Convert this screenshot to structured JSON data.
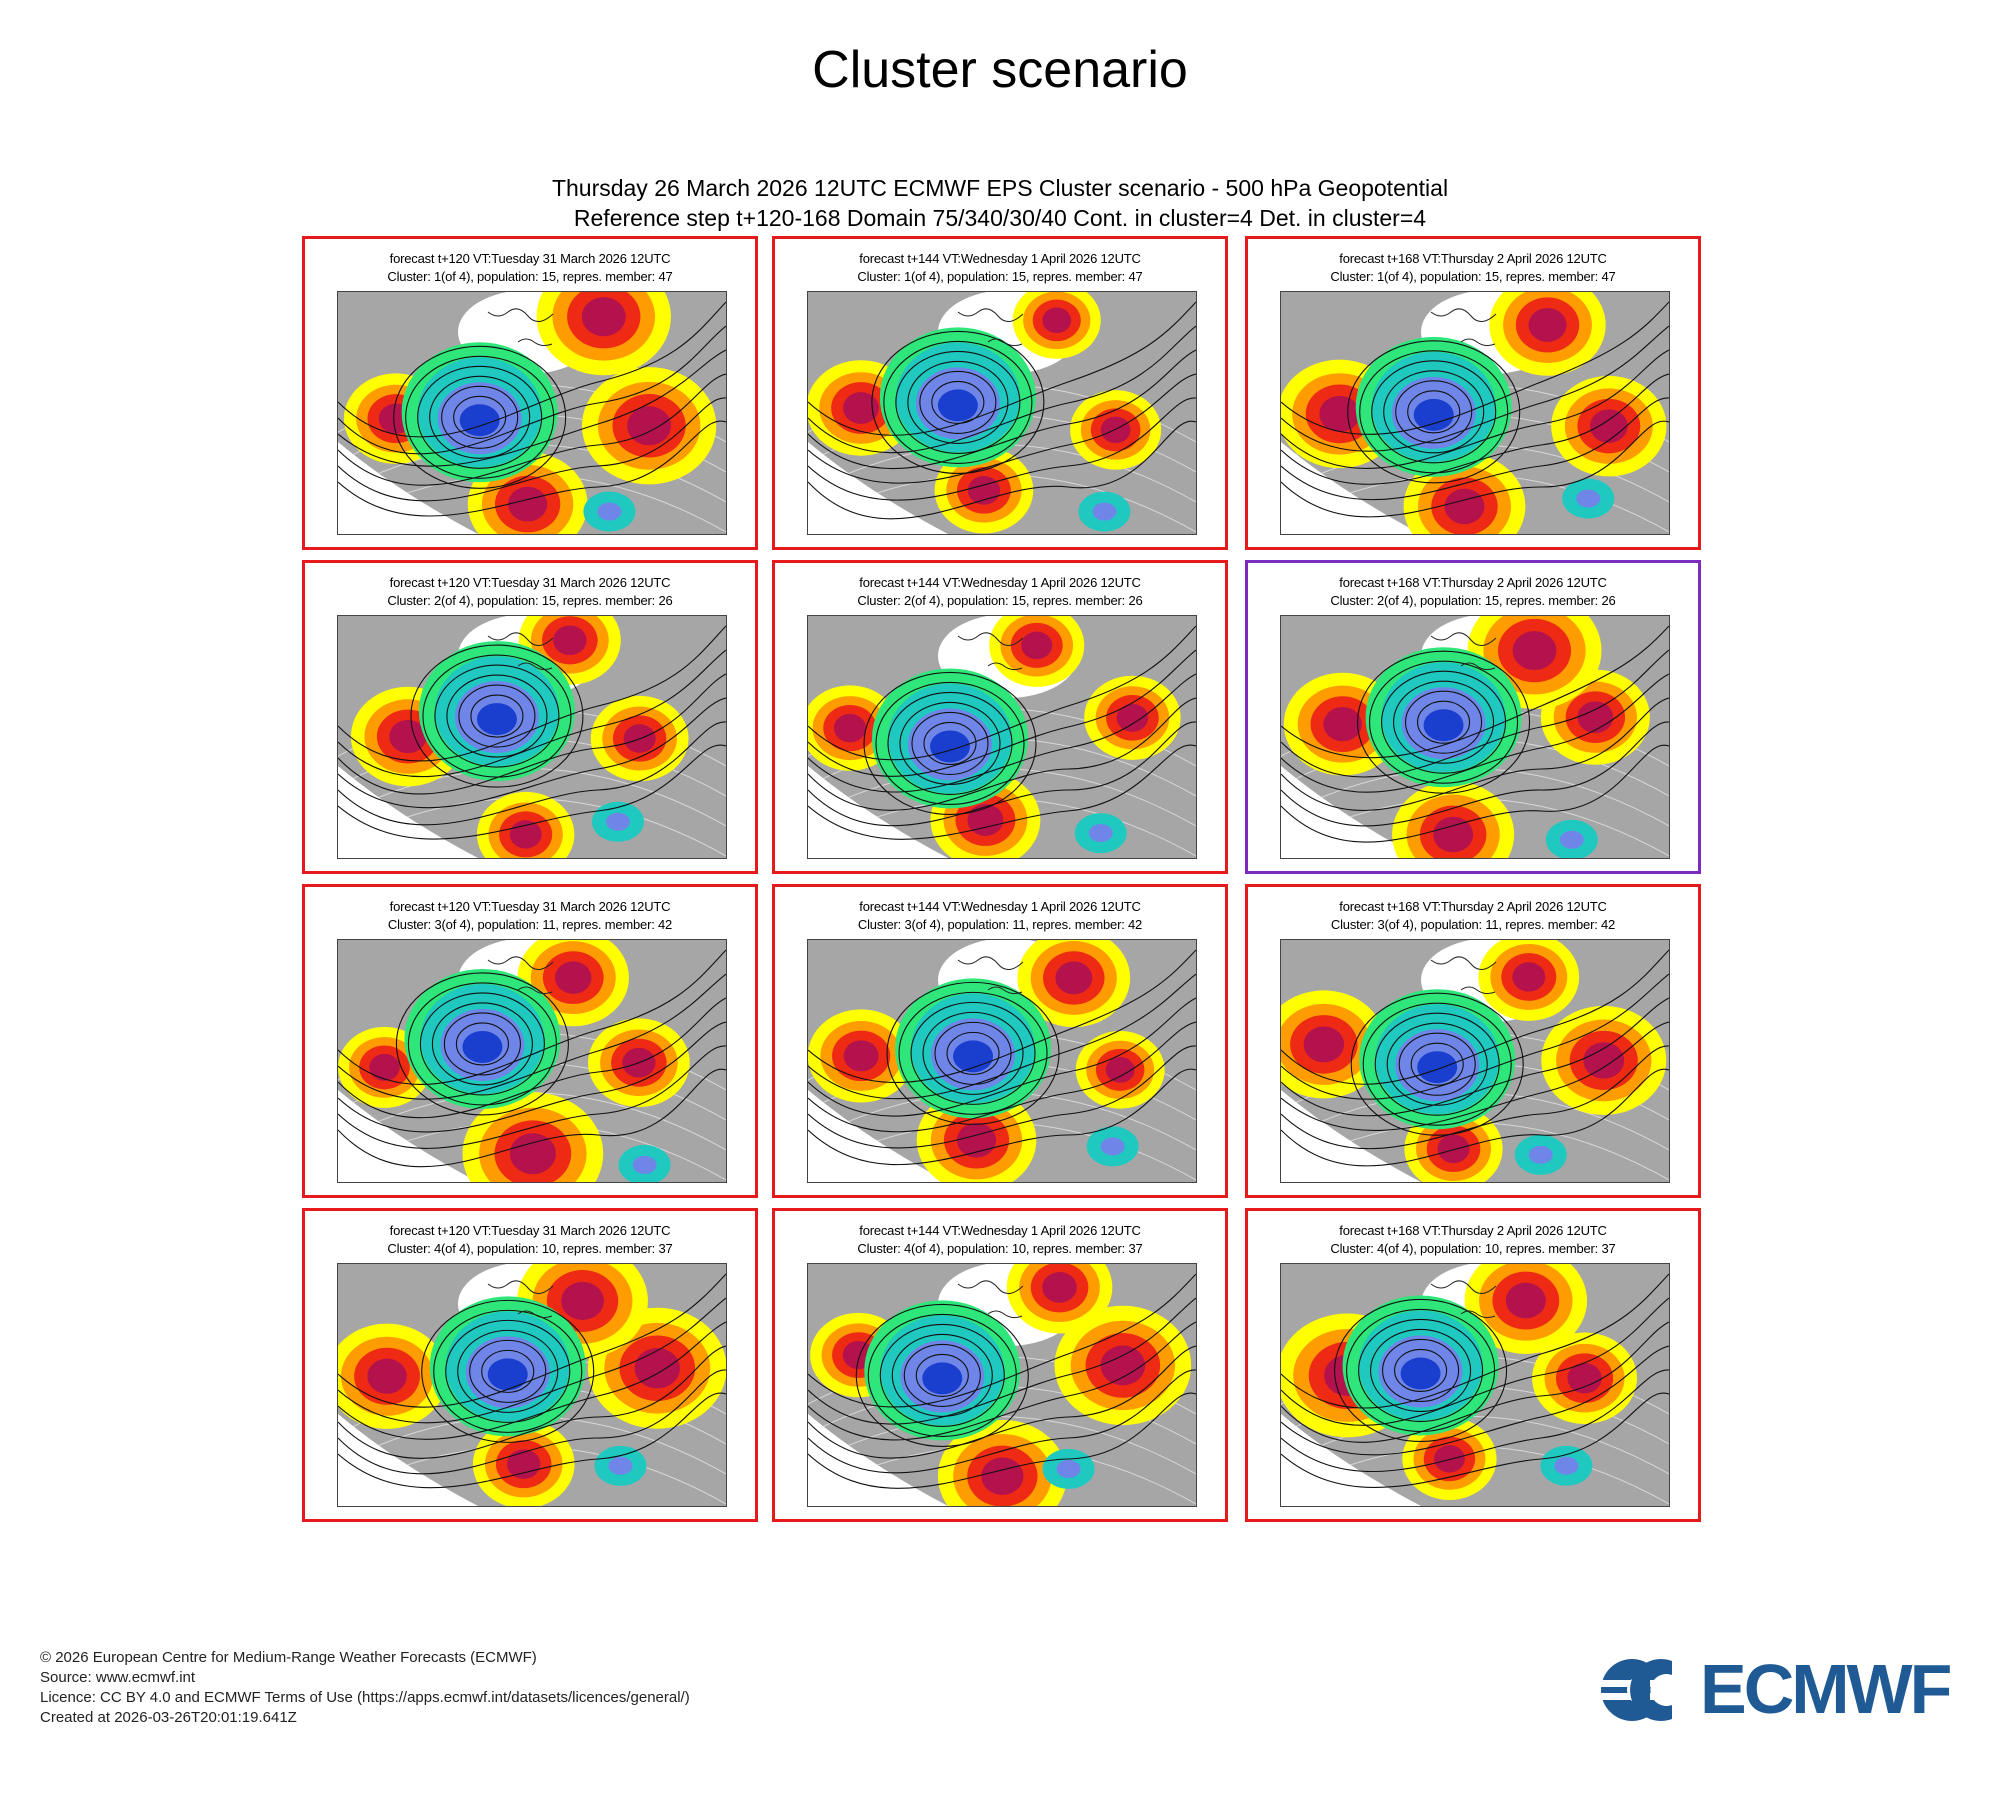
{
  "title": "Cluster scenario",
  "subtitle_line1": "Thursday 26 March 2026 12UTC ECMWF EPS Cluster scenario - 500 hPa Geopotential",
  "subtitle_line2": "Reference step t+120-168 Domain 75/340/30/40 Cont. in cluster=4 Det. in cluster=4",
  "colors": {
    "panel_border": "#e41a1c",
    "selected_border": "#7b2cbf",
    "land": "#a6a6a6",
    "anomaly_scale": [
      "#1a3fcf",
      "#6f86e8",
      "#1fc9c0",
      "#2fe67a",
      "#ffff00",
      "#ff9d00",
      "#ee2a14",
      "#b3124d"
    ]
  },
  "panels": [
    {
      "line1": "forecast t+120 VT:Tuesday 31 March 2026 12UTC",
      "line2": "Cluster: 1(of 4), population: 15, repres. member: 47",
      "selected": false
    },
    {
      "line1": "forecast t+144 VT:Wednesday 1 April 2026 12UTC",
      "line2": "Cluster: 1(of 4), population: 15, repres. member: 47",
      "selected": false
    },
    {
      "line1": "forecast t+168 VT:Thursday 2 April 2026 12UTC",
      "line2": "Cluster: 1(of 4), population: 15, repres. member: 47",
      "selected": false
    },
    {
      "line1": "forecast t+120 VT:Tuesday 31 March 2026 12UTC",
      "line2": "Cluster: 2(of 4), population: 15, repres. member: 26",
      "selected": false
    },
    {
      "line1": "forecast t+144 VT:Wednesday 1 April 2026 12UTC",
      "line2": "Cluster: 2(of 4), population: 15, repres. member: 26",
      "selected": false
    },
    {
      "line1": "forecast t+168 VT:Thursday 2 April 2026 12UTC",
      "line2": "Cluster: 2(of 4), population: 15, repres. member: 26",
      "selected": true
    },
    {
      "line1": "forecast t+120 VT:Tuesday 31 March 2026 12UTC",
      "line2": "Cluster: 3(of 4), population: 11, repres. member: 42",
      "selected": false
    },
    {
      "line1": "forecast t+144 VT:Wednesday 1 April 2026 12UTC",
      "line2": "Cluster: 3(of 4), population: 11, repres. member: 42",
      "selected": false
    },
    {
      "line1": "forecast t+168 VT:Thursday 2 April 2026 12UTC",
      "line2": "Cluster: 3(of 4), population: 11, repres. member: 42",
      "selected": false
    },
    {
      "line1": "forecast t+120 VT:Tuesday 31 March 2026 12UTC",
      "line2": "Cluster: 4(of 4), population: 10, repres. member: 37",
      "selected": false
    },
    {
      "line1": "forecast t+144 VT:Wednesday 1 April 2026 12UTC",
      "line2": "Cluster: 4(of 4), population: 10, repres. member: 37",
      "selected": false
    },
    {
      "line1": "forecast t+168 VT:Thursday 2 April 2026 12UTC",
      "line2": "Cluster: 4(of 4), population: 10, repres. member: 37",
      "selected": false
    }
  ],
  "footer": {
    "copyright": "© 2026 European Centre for Medium-Range Weather Forecasts (ECMWF)",
    "source": "Source: www.ecmwf.int",
    "licence": "Licence: CC BY 4.0 and ECMWF Terms of Use (https://apps.ecmwf.int/datasets/licences/general/)",
    "created": "Created at 2026-03-26T20:01:19.641Z"
  },
  "logo": {
    "text": "ECMWF",
    "color": "#1f5a95"
  }
}
